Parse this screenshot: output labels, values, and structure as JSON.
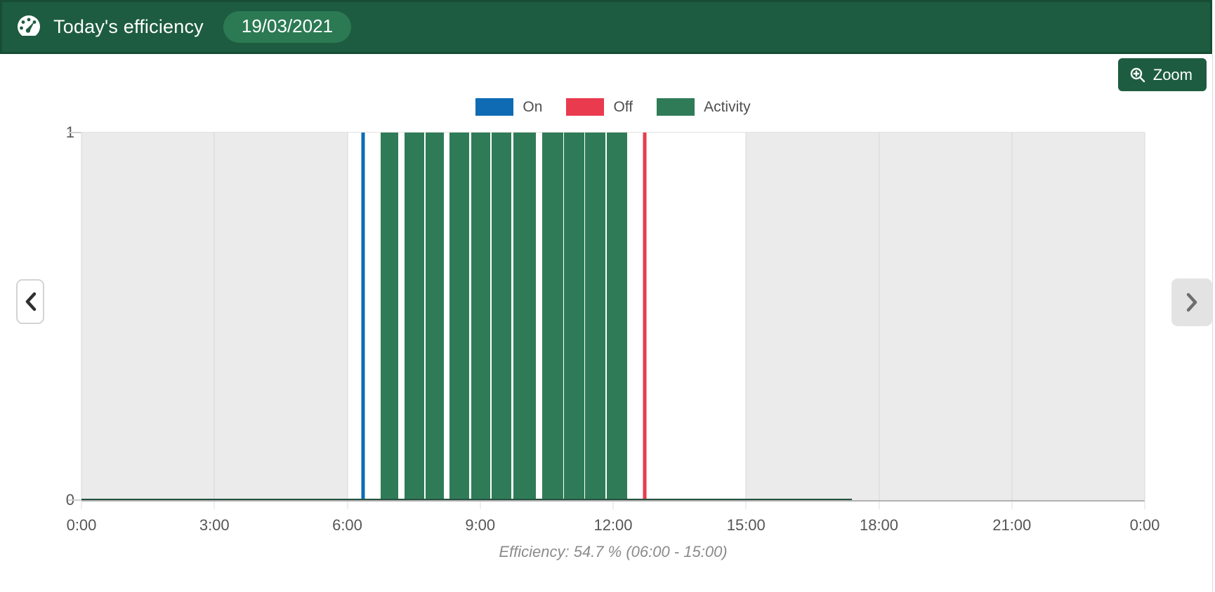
{
  "header": {
    "title": "Today's efficiency",
    "date": "19/03/2021"
  },
  "toolbar": {
    "zoom_label": "Zoom"
  },
  "legend": {
    "items": [
      {
        "label": "On",
        "color": "#0E6BB4"
      },
      {
        "label": "Off",
        "color": "#EA3A4E"
      },
      {
        "label": "Activity",
        "color": "#2F7B58"
      }
    ]
  },
  "caption": "Efficiency: 54.7 % (06:00 - 15:00)",
  "chart_data": {
    "type": "bar",
    "title": "Today's efficiency",
    "date": "19/03/2021",
    "x_unit": "time of day (hours)",
    "x_range": [
      0,
      24
    ],
    "y_range": [
      0,
      1
    ],
    "x_ticks": [
      {
        "h": 0,
        "label": "0:00"
      },
      {
        "h": 3,
        "label": "3:00"
      },
      {
        "h": 6,
        "label": "6:00"
      },
      {
        "h": 9,
        "label": "9:00"
      },
      {
        "h": 12,
        "label": "12:00"
      },
      {
        "h": 15,
        "label": "15:00"
      },
      {
        "h": 18,
        "label": "18:00"
      },
      {
        "h": 21,
        "label": "21:00"
      },
      {
        "h": 24,
        "label": "0:00"
      }
    ],
    "y_ticks": [
      {
        "v": 0,
        "label": "0"
      },
      {
        "v": 1,
        "label": "1"
      }
    ],
    "grid": true,
    "legend_position": "top",
    "legend_entries": [
      "On",
      "Off",
      "Activity"
    ],
    "off_shift_bands_h": [
      [
        0,
        6
      ],
      [
        15,
        24
      ]
    ],
    "band_color": "#EBEBEB",
    "shift_window": {
      "start": "06:00",
      "end": "15:00"
    },
    "efficiency_pct": 54.7,
    "events": [
      {
        "type": "On",
        "time_h": 6.36,
        "time_label": "06:21",
        "color": "#0E6BB4"
      },
      {
        "type": "Off",
        "time_h": 12.71,
        "time_label": "12:43",
        "color": "#EA3A4E"
      }
    ],
    "activity_color": "#2F7B58",
    "activity_value": 1,
    "activity_bars_h": [
      [
        6.75,
        7.15
      ],
      [
        7.29,
        7.74
      ],
      [
        7.77,
        8.18
      ],
      [
        8.31,
        8.75
      ],
      [
        8.79,
        9.23
      ],
      [
        9.26,
        9.7
      ],
      [
        9.75,
        10.26
      ],
      [
        10.4,
        10.87
      ],
      [
        10.89,
        11.35
      ],
      [
        11.37,
        11.82
      ],
      [
        11.85,
        12.32
      ]
    ],
    "activity_baseline_h": [
      0,
      17.39
    ]
  }
}
